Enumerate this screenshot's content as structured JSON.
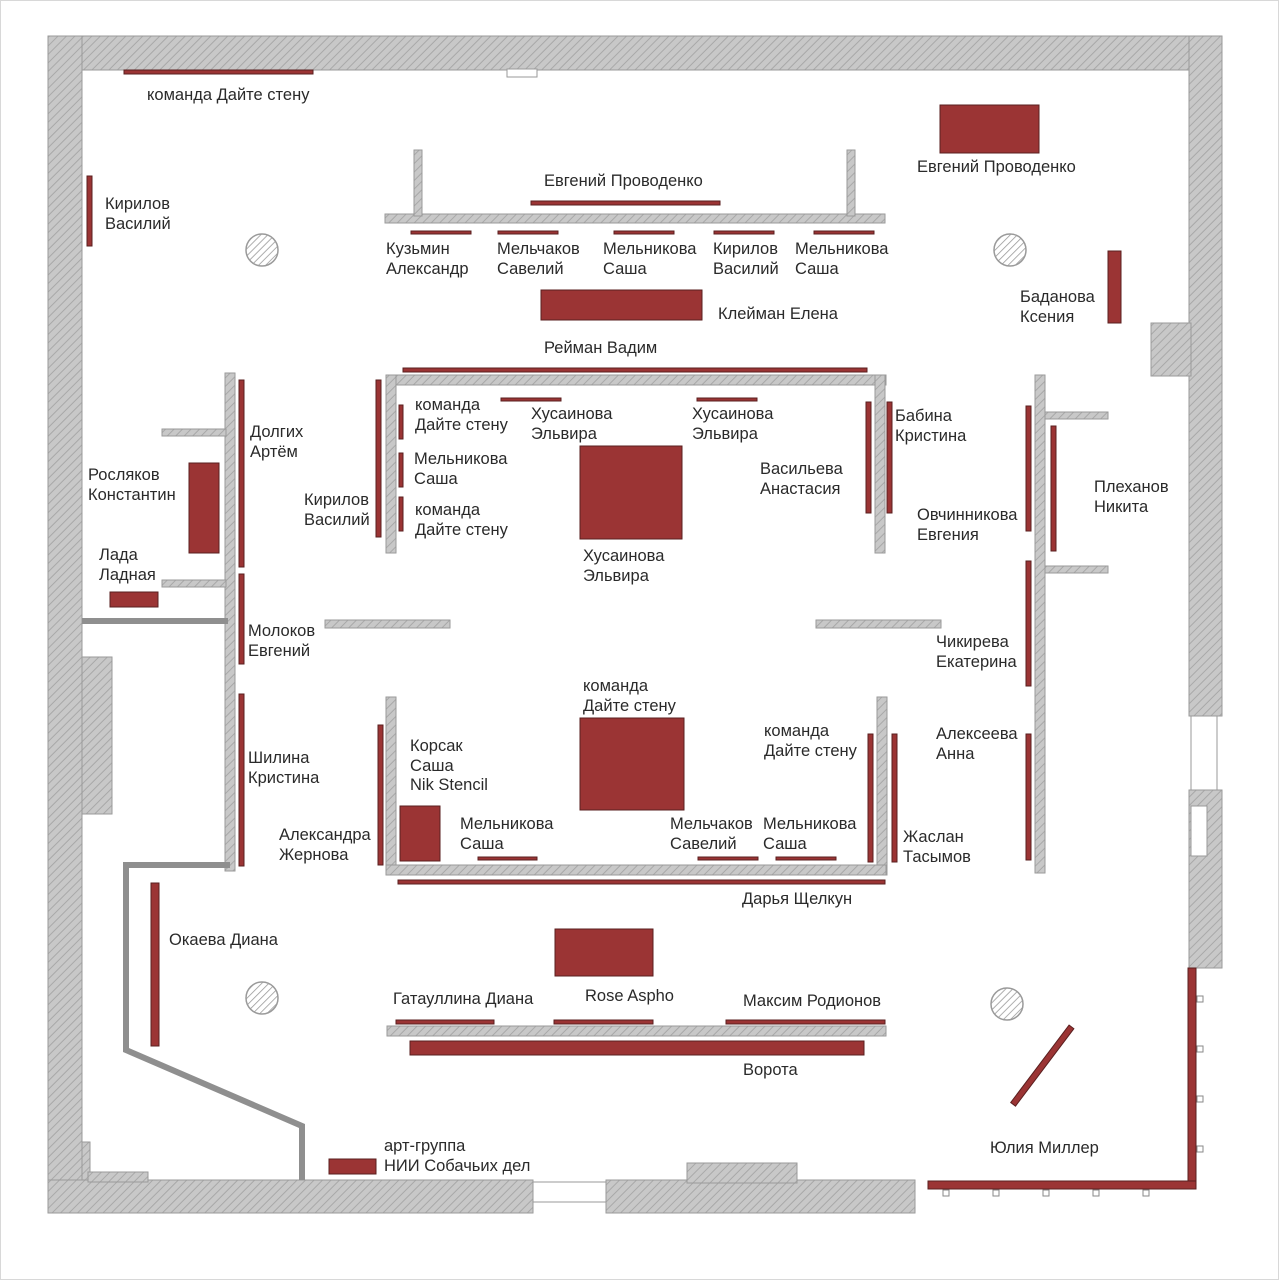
{
  "colors": {
    "artwork": "#9b3434",
    "wall": "#9e9e9e",
    "outer_wall": "#bdbdbd",
    "text": "#2a2a2a"
  },
  "labels": {
    "komanda_top": [
      "команда Дайте стену"
    ],
    "provodenko_center": [
      "Евгений Проводенко"
    ],
    "provodenko_right": [
      "Евгений Проводенко"
    ],
    "kirilov_left": [
      "Кирилов",
      "Василий"
    ],
    "kuzmin": [
      "Кузьмин",
      "Александр"
    ],
    "melchakov_top": [
      "Мельчаков",
      "Савелий"
    ],
    "melnikova_top1": [
      "Мельникова",
      "Саша"
    ],
    "kirilov_top": [
      "Кирилов",
      "Василий"
    ],
    "melnikova_top2": [
      "Мельникова",
      "Саша"
    ],
    "kleiman": [
      "Клейман Елена"
    ],
    "badanova": [
      "Баданова",
      "Ксения"
    ],
    "reiman": [
      "Рейман Вадим"
    ],
    "dolgikh": [
      "Долгих",
      "Артём"
    ],
    "roslyakov": [
      "Росляков",
      "Константин"
    ],
    "lada": [
      "Лада",
      "Ладная"
    ],
    "kirilov_inner": [
      "Кирилов",
      "Василий"
    ],
    "komanda_in1": [
      "команда",
      "Дайте стену"
    ],
    "melnikova_in": [
      "Мельникова",
      "Саша"
    ],
    "komanda_in2": [
      "команда",
      "Дайте стену"
    ],
    "khusainova1": [
      "Хусаинова",
      "Эльвира"
    ],
    "khusainova2": [
      "Хусаинова",
      "Эльвира"
    ],
    "khusainova3": [
      "Хусаинова",
      "Эльвира"
    ],
    "vasilyeva": [
      "Васильева",
      "Анастасия"
    ],
    "babina": [
      "Бабина",
      "Кристина"
    ],
    "ovchinnikova": [
      "Овчинникова",
      "Евгения"
    ],
    "plekhanov": [
      "Плеханов",
      "Никита"
    ],
    "molokov": [
      "Молоков",
      "Евгений"
    ],
    "chikireva": [
      "Чикирева",
      "Екатерина"
    ],
    "komanda_center": [
      "команда",
      "Дайте стену"
    ],
    "komanda_right": [
      "команда",
      "Дайте стену"
    ],
    "korsak": [
      "Корсак",
      "Саша",
      "Nik Stencil"
    ],
    "shilina": [
      "Шилина",
      "Кристина"
    ],
    "alekseeva": [
      "Алексеева",
      "Анна"
    ],
    "zhernova": [
      "Александра",
      "Жернова"
    ],
    "melnikova_low1": [
      "Мельникова",
      "Саша"
    ],
    "melchakov_low": [
      "Мельчаков",
      "Савелий"
    ],
    "melnikova_low2": [
      "Мельникова",
      "Саша"
    ],
    "zhaslan": [
      "Жаслан",
      "Тасымов"
    ],
    "shchelkun": [
      "Дарья Щелкун"
    ],
    "okaeva": [
      "Окаева Диана"
    ],
    "gataullina": [
      "Гатауллина Диана"
    ],
    "rose": [
      "Rose Aspho"
    ],
    "rodionov": [
      "Максим Родионов"
    ],
    "vorota": [
      "Ворота"
    ],
    "miller": [
      "Юлия Миллер"
    ],
    "nii": [
      "арт-группа",
      "НИИ Собачьих дел"
    ]
  }
}
